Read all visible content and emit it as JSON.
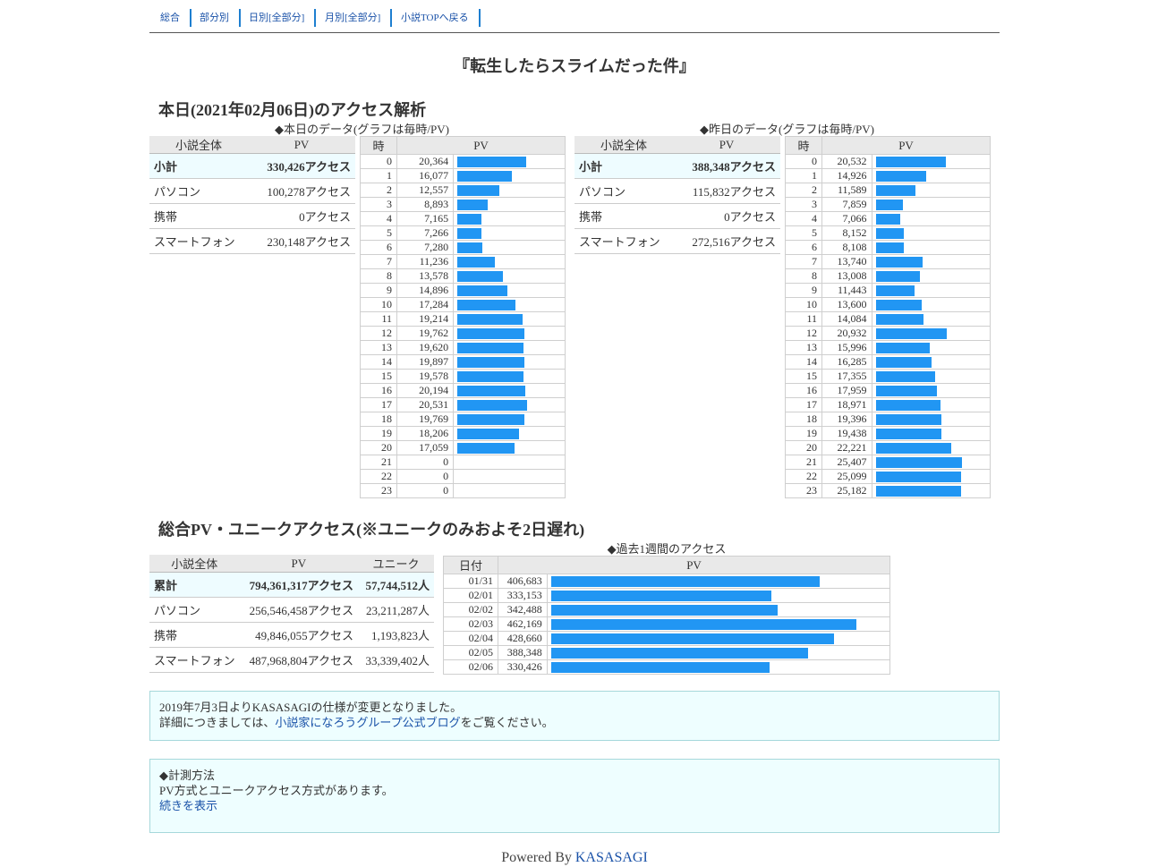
{
  "nav": [
    "総合",
    "部分別",
    "日別[全部分]",
    "月別[全部分]",
    "小説TOPへ戻る"
  ],
  "title": "『転生したらスライムだった件』",
  "today_heading": "本日(2021年02月06日)のアクセス解析",
  "today_caption": "◆本日のデータ(グラフは毎時/PV)",
  "yesterday_caption": "◆昨日のデータ(グラフは毎時/PV)",
  "summary_headers": [
    "小説全体",
    "PV"
  ],
  "hour_headers": [
    "時",
    "PV"
  ],
  "today_summary": [
    {
      "label": "小計",
      "pv": "330,426アクセス"
    },
    {
      "label": "パソコン",
      "pv": "100,278アクセス"
    },
    {
      "label": "携帯",
      "pv": "0アクセス"
    },
    {
      "label": "スマートフォン",
      "pv": "230,148アクセス"
    }
  ],
  "yesterday_summary": [
    {
      "label": "小計",
      "pv": "388,348アクセス"
    },
    {
      "label": "パソコン",
      "pv": "115,832アクセス"
    },
    {
      "label": "携帯",
      "pv": "0アクセス"
    },
    {
      "label": "スマートフォン",
      "pv": "272,516アクセス"
    }
  ],
  "today_hourly": [
    {
      "hour": "0",
      "pv": "20,364",
      "value": 20364
    },
    {
      "hour": "1",
      "pv": "16,077",
      "value": 16077
    },
    {
      "hour": "2",
      "pv": "12,557",
      "value": 12557
    },
    {
      "hour": "3",
      "pv": "8,893",
      "value": 8893
    },
    {
      "hour": "4",
      "pv": "7,165",
      "value": 7165
    },
    {
      "hour": "5",
      "pv": "7,266",
      "value": 7266
    },
    {
      "hour": "6",
      "pv": "7,280",
      "value": 7280
    },
    {
      "hour": "7",
      "pv": "11,236",
      "value": 11236
    },
    {
      "hour": "8",
      "pv": "13,578",
      "value": 13578
    },
    {
      "hour": "9",
      "pv": "14,896",
      "value": 14896
    },
    {
      "hour": "10",
      "pv": "17,284",
      "value": 17284
    },
    {
      "hour": "11",
      "pv": "19,214",
      "value": 19214
    },
    {
      "hour": "12",
      "pv": "19,762",
      "value": 19762
    },
    {
      "hour": "13",
      "pv": "19,620",
      "value": 19620
    },
    {
      "hour": "14",
      "pv": "19,897",
      "value": 19897
    },
    {
      "hour": "15",
      "pv": "19,578",
      "value": 19578
    },
    {
      "hour": "16",
      "pv": "20,194",
      "value": 20194
    },
    {
      "hour": "17",
      "pv": "20,531",
      "value": 20531
    },
    {
      "hour": "18",
      "pv": "19,769",
      "value": 19769
    },
    {
      "hour": "19",
      "pv": "18,206",
      "value": 18206
    },
    {
      "hour": "20",
      "pv": "17,059",
      "value": 17059
    },
    {
      "hour": "21",
      "pv": "0",
      "value": 0
    },
    {
      "hour": "22",
      "pv": "0",
      "value": 0
    },
    {
      "hour": "23",
      "pv": "0",
      "value": 0
    }
  ],
  "yesterday_hourly": [
    {
      "hour": "0",
      "pv": "20,532",
      "value": 20532
    },
    {
      "hour": "1",
      "pv": "14,926",
      "value": 14926
    },
    {
      "hour": "2",
      "pv": "11,589",
      "value": 11589
    },
    {
      "hour": "3",
      "pv": "7,859",
      "value": 7859
    },
    {
      "hour": "4",
      "pv": "7,066",
      "value": 7066
    },
    {
      "hour": "5",
      "pv": "8,152",
      "value": 8152
    },
    {
      "hour": "6",
      "pv": "8,108",
      "value": 8108
    },
    {
      "hour": "7",
      "pv": "13,740",
      "value": 13740
    },
    {
      "hour": "8",
      "pv": "13,008",
      "value": 13008
    },
    {
      "hour": "9",
      "pv": "11,443",
      "value": 11443
    },
    {
      "hour": "10",
      "pv": "13,600",
      "value": 13600
    },
    {
      "hour": "11",
      "pv": "14,084",
      "value": 14084
    },
    {
      "hour": "12",
      "pv": "20,932",
      "value": 20932
    },
    {
      "hour": "13",
      "pv": "15,996",
      "value": 15996
    },
    {
      "hour": "14",
      "pv": "16,285",
      "value": 16285
    },
    {
      "hour": "15",
      "pv": "17,355",
      "value": 17355
    },
    {
      "hour": "16",
      "pv": "17,959",
      "value": 17959
    },
    {
      "hour": "17",
      "pv": "18,971",
      "value": 18971
    },
    {
      "hour": "18",
      "pv": "19,396",
      "value": 19396
    },
    {
      "hour": "19",
      "pv": "19,438",
      "value": 19438
    },
    {
      "hour": "20",
      "pv": "22,221",
      "value": 22221
    },
    {
      "hour": "21",
      "pv": "25,407",
      "value": 25407
    },
    {
      "hour": "22",
      "pv": "25,099",
      "value": 25099
    },
    {
      "hour": "23",
      "pv": "25,182",
      "value": 25182
    }
  ],
  "total_heading": "総合PV・ユニークアクセス(※ユニークのみおよそ2日遅れ)",
  "total_headers": [
    "小説全体",
    "PV",
    "ユニーク"
  ],
  "total_summary": [
    {
      "label": "累計",
      "pv": "794,361,317アクセス",
      "unique": "57,744,512人"
    },
    {
      "label": "パソコン",
      "pv": "256,546,458アクセス",
      "unique": "23,211,287人"
    },
    {
      "label": "携帯",
      "pv": "49,846,055アクセス",
      "unique": "1,193,823人"
    },
    {
      "label": "スマートフォン",
      "pv": "487,968,804アクセス",
      "unique": "33,339,402人"
    }
  ],
  "week_caption": "◆過去1週間のアクセス",
  "week_headers": [
    "日付",
    "PV"
  ],
  "week": [
    {
      "date": "01/31",
      "pv": "406,683",
      "value": 406683
    },
    {
      "date": "02/01",
      "pv": "333,153",
      "value": 333153
    },
    {
      "date": "02/02",
      "pv": "342,488",
      "value": 342488
    },
    {
      "date": "02/03",
      "pv": "462,169",
      "value": 462169
    },
    {
      "date": "02/04",
      "pv": "428,660",
      "value": 428660
    },
    {
      "date": "02/05",
      "pv": "388,348",
      "value": 388348
    },
    {
      "date": "02/06",
      "pv": "330,426",
      "value": 330426
    }
  ],
  "notice": {
    "line1": "2019年7月3日よりKASASAGIの仕様が変更となりました。",
    "line2_pre": "詳細につきましては、",
    "line2_link": "小説家になろうグループ公式ブログ",
    "line2_post": "をご覧ください。"
  },
  "method": {
    "title": "◆計測方法",
    "text": "PV方式とユニークアクセス方式があります。",
    "link": "続きを表示"
  },
  "footer": {
    "prefix": "Powered By ",
    "link": "KASASAGI"
  },
  "colors": {
    "bar": "#2196f3",
    "highlight_row": "#eefcff",
    "info_bg": "#eefeff"
  }
}
